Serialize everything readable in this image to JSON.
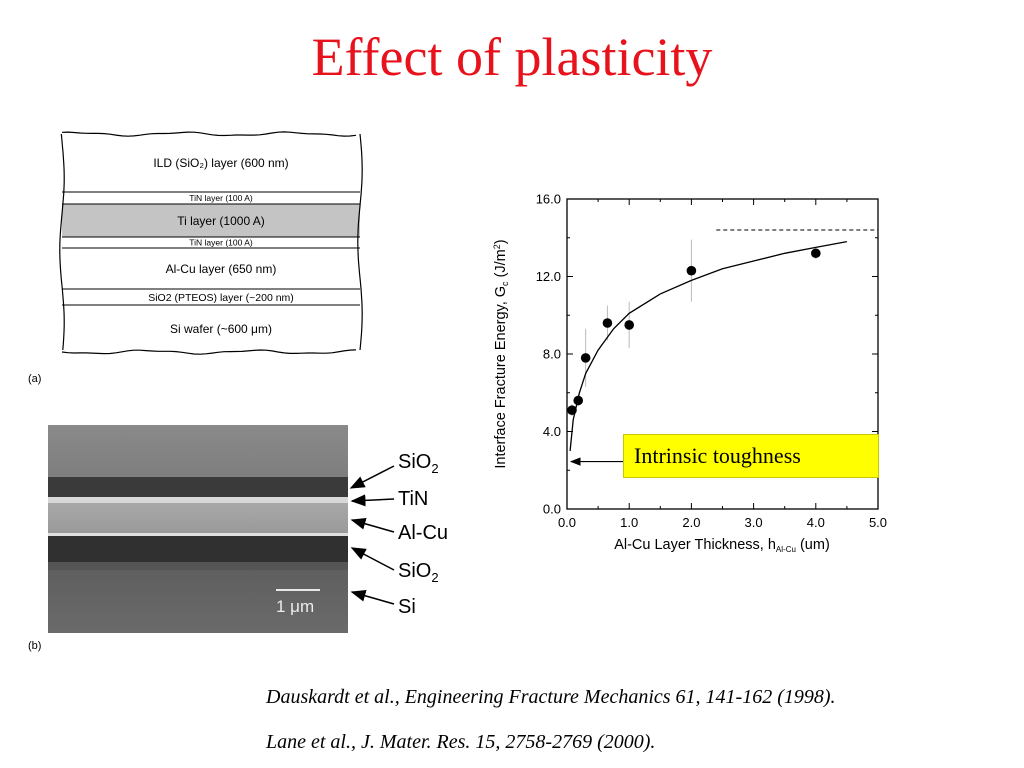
{
  "title": "Effect of plasticity",
  "diagram": {
    "panel_label": "(a)",
    "layers": [
      {
        "name": "ild",
        "label": "ILD (SiO₂) layer (600 nm)",
        "fill": "#ffffff"
      },
      {
        "name": "tin-top",
        "label": "TiN layer (100 A)",
        "fill": "#ffffff"
      },
      {
        "name": "ti",
        "label": "Ti layer (1000 A)",
        "fill": "#c4c4c4"
      },
      {
        "name": "tin-bottom",
        "label": "TiN layer (100 A)",
        "fill": "#ffffff"
      },
      {
        "name": "alcu",
        "label": "Al-Cu layer (650 nm)",
        "fill": "#ffffff"
      },
      {
        "name": "sio2-pteos",
        "label": "SiO2 (PTEOS) layer (~200 nm)",
        "fill": "#ffffff"
      },
      {
        "name": "si-wafer",
        "label": "Si wafer (~600 μm)",
        "fill": "#ffffff"
      }
    ]
  },
  "micrograph": {
    "panel_label": "(b)",
    "scale_label": "1 μm",
    "labels": {
      "sio2_top": "SiO",
      "sio2_top_sub": "2",
      "tin": "TiN",
      "alcu": "Al-Cu",
      "sio2_bottom": "SiO",
      "sio2_bottom_sub": "2",
      "si": "Si"
    }
  },
  "chart_data": {
    "type": "scatter",
    "xlabel": "Al-Cu Layer Thickness, h",
    "xlabel_sub": "Al-Cu",
    "xlabel_unit": " (um)",
    "ylabel": "Interface Fracture Energy, G",
    "ylabel_sub": "c",
    "ylabel_unit": " (J/m",
    "ylabel_sup": "2",
    "ylabel_close": ")",
    "xlim": [
      0,
      5
    ],
    "ylim": [
      0,
      16
    ],
    "x_ticks": [
      "0.0",
      "1.0",
      "2.0",
      "3.0",
      "4.0",
      "5.0"
    ],
    "y_ticks": [
      "0.0",
      "4.0",
      "8.0",
      "12.0",
      "16.0"
    ],
    "points": [
      {
        "x": 0.08,
        "y": 5.1,
        "err": 0.3
      },
      {
        "x": 0.18,
        "y": 5.6,
        "err": 0.3
      },
      {
        "x": 0.3,
        "y": 7.8,
        "err": 1.5
      },
      {
        "x": 0.65,
        "y": 9.6,
        "err": 0.9
      },
      {
        "x": 1.0,
        "y": 9.5,
        "err": 1.2
      },
      {
        "x": 2.0,
        "y": 12.3,
        "err": 1.6
      },
      {
        "x": 4.0,
        "y": 13.2,
        "err": 0.3
      }
    ],
    "fit_curve": [
      {
        "x": 0.05,
        "y": 3.0
      },
      {
        "x": 0.1,
        "y": 4.6
      },
      {
        "x": 0.2,
        "y": 6.0
      },
      {
        "x": 0.3,
        "y": 7.0
      },
      {
        "x": 0.5,
        "y": 8.2
      },
      {
        "x": 0.75,
        "y": 9.3
      },
      {
        "x": 1.0,
        "y": 10.1
      },
      {
        "x": 1.5,
        "y": 11.1
      },
      {
        "x": 2.0,
        "y": 11.8
      },
      {
        "x": 2.5,
        "y": 12.4
      },
      {
        "x": 3.0,
        "y": 12.8
      },
      {
        "x": 3.5,
        "y": 13.2
      },
      {
        "x": 4.0,
        "y": 13.5
      },
      {
        "x": 4.5,
        "y": 13.8
      }
    ],
    "asymptote": {
      "y": 14.4,
      "x_start": 2.4,
      "x_end": 5.0
    },
    "intrinsic_arrow_y": 2.5,
    "annotation": "Intrinsic toughness",
    "grid": false,
    "legend": "none"
  },
  "citations": [
    "Dauskardt et al., Engineering Fracture Mechanics 61, 141-162 (1998).",
    "Lane et al., J. Mater. Res. 15, 2758-2769 (2000)."
  ],
  "colors": {
    "title": "#e8121c",
    "callout_bg": "#ffff00"
  }
}
